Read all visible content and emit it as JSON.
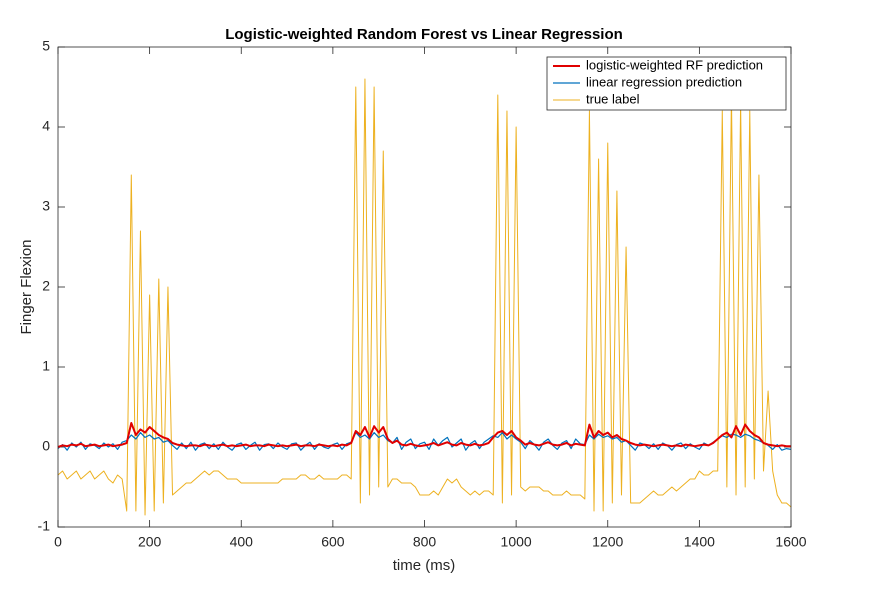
{
  "chart_data": {
    "type": "line",
    "title": "Logistic-weighted Random Forest vs Linear Regression",
    "x_label": "time (ms)",
    "y_label": "Finger Flexion",
    "xlim": [
      0,
      1600
    ],
    "ylim": [
      -1,
      5
    ],
    "xticks": [
      0,
      200,
      400,
      600,
      800,
      1000,
      1200,
      1400,
      1600
    ],
    "yticks": [
      -1,
      0,
      1,
      2,
      3,
      4,
      5
    ],
    "legend": "upper right",
    "x": [
      0,
      10,
      20,
      30,
      40,
      50,
      60,
      70,
      80,
      90,
      100,
      110,
      120,
      130,
      140,
      150,
      160,
      170,
      180,
      190,
      200,
      210,
      220,
      230,
      240,
      250,
      260,
      270,
      280,
      290,
      300,
      310,
      320,
      330,
      340,
      350,
      360,
      370,
      380,
      390,
      400,
      410,
      420,
      430,
      440,
      450,
      460,
      470,
      480,
      490,
      500,
      510,
      520,
      530,
      540,
      550,
      560,
      570,
      580,
      590,
      600,
      610,
      620,
      630,
      640,
      650,
      660,
      670,
      680,
      690,
      700,
      710,
      720,
      730,
      740,
      750,
      760,
      770,
      780,
      790,
      800,
      810,
      820,
      830,
      840,
      850,
      860,
      870,
      880,
      890,
      900,
      910,
      920,
      930,
      940,
      950,
      960,
      970,
      980,
      990,
      1000,
      1010,
      1020,
      1030,
      1040,
      1050,
      1060,
      1070,
      1080,
      1090,
      1100,
      1110,
      1120,
      1130,
      1140,
      1150,
      1160,
      1170,
      1180,
      1190,
      1200,
      1210,
      1220,
      1230,
      1240,
      1250,
      1260,
      1270,
      1280,
      1290,
      1300,
      1310,
      1320,
      1330,
      1340,
      1350,
      1360,
      1370,
      1380,
      1390,
      1400,
      1410,
      1420,
      1430,
      1440,
      1450,
      1460,
      1470,
      1480,
      1490,
      1500,
      1510,
      1520,
      1530,
      1540,
      1550,
      1560,
      1570,
      1580,
      1590,
      1600
    ],
    "series": [
      {
        "name": "logistic-weighted RF prediction",
        "color": "#e00000",
        "width": 2,
        "values": [
          0,
          0.02,
          0.01,
          0.03,
          0.02,
          0.04,
          0.01,
          0.02,
          0.03,
          0.01,
          0.02,
          0.03,
          0.01,
          0.02,
          0.03,
          0.05,
          0.3,
          0.15,
          0.22,
          0.18,
          0.25,
          0.2,
          0.15,
          0.12,
          0.1,
          0.05,
          0.03,
          0.02,
          0.01,
          0.02,
          0.02,
          0.01,
          0.03,
          0.02,
          0.01,
          0.02,
          0.03,
          0.01,
          0.02,
          0.01,
          0.02,
          0.03,
          0.01,
          0.02,
          0.02,
          0.01,
          0.03,
          0.02,
          0.01,
          0.02,
          0.01,
          0.02,
          0.03,
          0.01,
          0.02,
          0.02,
          0.01,
          0.03,
          0.02,
          0.01,
          0.02,
          0.01,
          0.03,
          0.02,
          0.05,
          0.2,
          0.15,
          0.25,
          0.12,
          0.26,
          0.18,
          0.25,
          0.1,
          0.05,
          0.08,
          0.03,
          0.02,
          0.04,
          0.02,
          0.01,
          0.02,
          0.03,
          0.05,
          0.02,
          0.04,
          0.06,
          0.03,
          0.02,
          0.05,
          0.03,
          0.02,
          0.04,
          0.02,
          0.03,
          0.05,
          0.12,
          0.18,
          0.2,
          0.15,
          0.2,
          0.12,
          0.08,
          0.03,
          0.05,
          0.03,
          0.02,
          0.04,
          0.06,
          0.03,
          0.02,
          0.03,
          0.05,
          0.02,
          0.04,
          0.03,
          0.02,
          0.28,
          0.12,
          0.2,
          0.15,
          0.18,
          0.12,
          0.15,
          0.1,
          0.08,
          0.05,
          0.03,
          0.02,
          0.03,
          0.02,
          0.01,
          0.02,
          0.03,
          0.02,
          0.01,
          0.02,
          0.01,
          0.03,
          0.02,
          0.01,
          0.02,
          0.03,
          0.02,
          0.05,
          0.1,
          0.15,
          0.18,
          0.12,
          0.26,
          0.15,
          0.28,
          0.2,
          0.15,
          0.12,
          0.05,
          0.03,
          0.02,
          0.01,
          0.02,
          0.01,
          0.01
        ]
      },
      {
        "name": "linear regression prediction",
        "color": "#0072bd",
        "width": 1.2,
        "values": [
          -0.02,
          0.03,
          -0.04,
          0.05,
          0,
          0.06,
          -0.03,
          0.04,
          0.02,
          -0.02,
          0.05,
          0,
          0.04,
          -0.03,
          0.06,
          0.08,
          0.15,
          0.1,
          0.18,
          0.12,
          0.15,
          0.1,
          0.12,
          0.06,
          0.08,
          0.02,
          -0.03,
          0.05,
          -0.02,
          0.06,
          -0.04,
          0.03,
          0.05,
          -0.02,
          0.04,
          -0.03,
          0.06,
          0,
          -0.04,
          0.03,
          0.05,
          -0.03,
          0.02,
          0.06,
          -0.04,
          0.03,
          0.04,
          -0.02,
          0.05,
          0,
          -0.03,
          0.04,
          0.05,
          -0.04,
          0.02,
          0.06,
          -0.03,
          0.04,
          0,
          -0.02,
          0.03,
          0.05,
          -0.03,
          0.04,
          0.06,
          0.18,
          0.12,
          0.15,
          0.1,
          0.18,
          0.12,
          0.15,
          0.08,
          0.05,
          0.12,
          -0.03,
          0.06,
          0.1,
          -0.02,
          0.04,
          0.06,
          -0.03,
          0.1,
          0.02,
          0.08,
          0.12,
          0,
          0.05,
          0.1,
          -0.04,
          0.04,
          0.08,
          -0.02,
          0.06,
          0.1,
          0.14,
          0.12,
          0.18,
          0.1,
          0.15,
          0.1,
          0.06,
          -0.02,
          0.08,
          0.03,
          -0.04,
          0.06,
          0.1,
          0.02,
          -0.03,
          0.05,
          0.08,
          -0.02,
          0.1,
          0.04,
          0.03,
          0.15,
          0.1,
          0.16,
          0.12,
          0.14,
          0.1,
          0.12,
          0.06,
          0.08,
          0.02,
          -0.04,
          0.05,
          0.03,
          -0.02,
          0.04,
          -0.03,
          0.05,
          0.02,
          -0.04,
          0.03,
          0.05,
          -0.02,
          0.04,
          0,
          -0.03,
          0.05,
          0.02,
          0.06,
          0.1,
          0.14,
          0.12,
          0.16,
          0.15,
          0.12,
          0.16,
          0.14,
          0.1,
          0.08,
          0.05,
          0.02,
          -0.03,
          0.03,
          -0.04,
          -0.02,
          -0.03
        ]
      },
      {
        "name": "true label",
        "color": "#edb120",
        "width": 1,
        "values": [
          -0.35,
          -0.3,
          -0.4,
          -0.35,
          -0.3,
          -0.4,
          -0.35,
          -0.3,
          -0.4,
          -0.35,
          -0.3,
          -0.4,
          -0.45,
          -0.35,
          -0.4,
          -0.8,
          3.4,
          -0.8,
          2.7,
          -0.85,
          1.9,
          -0.8,
          2.1,
          -0.7,
          2.0,
          -0.6,
          -0.55,
          -0.5,
          -0.45,
          -0.45,
          -0.4,
          -0.35,
          -0.3,
          -0.35,
          -0.3,
          -0.3,
          -0.35,
          -0.4,
          -0.4,
          -0.4,
          -0.45,
          -0.45,
          -0.45,
          -0.45,
          -0.45,
          -0.45,
          -0.45,
          -0.45,
          -0.45,
          -0.4,
          -0.4,
          -0.4,
          -0.4,
          -0.35,
          -0.35,
          -0.4,
          -0.4,
          -0.35,
          -0.4,
          -0.4,
          -0.4,
          -0.4,
          -0.35,
          -0.35,
          -0.4,
          4.5,
          -0.7,
          4.6,
          -0.6,
          4.5,
          -0.5,
          3.7,
          -0.5,
          -0.4,
          -0.4,
          -0.45,
          -0.45,
          -0.45,
          -0.5,
          -0.6,
          -0.6,
          -0.6,
          -0.55,
          -0.6,
          -0.5,
          -0.4,
          -0.45,
          -0.4,
          -0.5,
          -0.55,
          -0.6,
          -0.55,
          -0.6,
          -0.55,
          -0.55,
          -0.6,
          4.4,
          -0.7,
          4.2,
          -0.6,
          4.0,
          -0.5,
          -0.55,
          -0.5,
          -0.5,
          -0.5,
          -0.55,
          -0.55,
          -0.6,
          -0.6,
          -0.6,
          -0.55,
          -0.6,
          -0.6,
          -0.6,
          -0.65,
          4.2,
          -0.8,
          3.6,
          -0.8,
          3.8,
          -0.7,
          3.2,
          -0.6,
          2.5,
          -0.7,
          -0.7,
          -0.7,
          -0.65,
          -0.6,
          -0.55,
          -0.6,
          -0.6,
          -0.55,
          -0.5,
          -0.55,
          -0.5,
          -0.45,
          -0.4,
          -0.4,
          -0.3,
          -0.35,
          -0.35,
          -0.3,
          -0.3,
          4.2,
          -0.5,
          4.4,
          -0.6,
          4.3,
          -0.5,
          4.2,
          -0.4,
          3.4,
          -0.3,
          0.7,
          -0.3,
          -0.6,
          -0.7,
          -0.7,
          -0.75
        ]
      }
    ]
  }
}
